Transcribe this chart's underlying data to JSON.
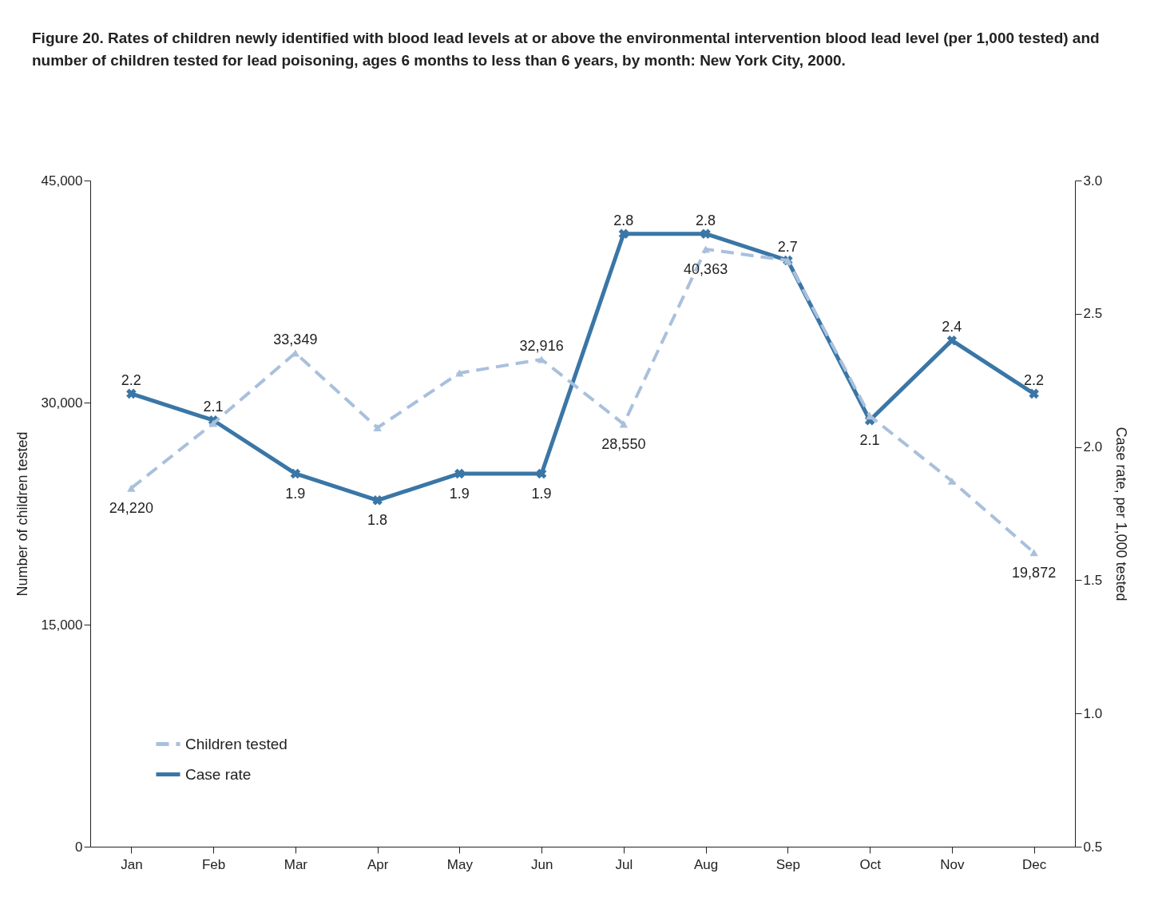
{
  "chart_data": {
    "type": "line",
    "title": "Figure 20. Rates of children newly identified with blood lead levels at or above the environmental intervention blood lead level (per 1,000 tested) and number of children tested for lead poisoning, ages 6 months to less than 6 years, by month: New York City, 2000.",
    "categories": [
      "Jan",
      "Feb",
      "Mar",
      "Apr",
      "May",
      "Jun",
      "Jul",
      "Aug",
      "Sep",
      "Oct",
      "Nov",
      "Dec"
    ],
    "ylabel": "Number of children tested",
    "y2label": "Case rate, per 1,000 tested",
    "ylim": [
      0,
      45000
    ],
    "yticks": [
      0,
      {
        "value": 15000,
        "label": "15,000"
      },
      {
        "value": 30000,
        "label": "30,000"
      },
      {
        "value": 45000,
        "label": "45,000"
      }
    ],
    "y2lim": [
      0.5,
      3
    ],
    "y2ticks": [
      0.5,
      {
        "value": 1,
        "label": "1.0"
      },
      1.5,
      {
        "value": 2,
        "label": "2.0"
      },
      2.5,
      {
        "value": 3,
        "label": "3.0"
      }
    ],
    "legend": "bottom left",
    "grid": false,
    "series": [
      {
        "name": "Children tested",
        "color": "#a9c0dc",
        "line_style": "dashed",
        "marker": "triangle",
        "values": [
          24220,
          28600,
          33349,
          28300,
          32000,
          32916,
          28550,
          40363,
          39600,
          29100,
          24700,
          19872
        ],
        "value_labels": [
          "24,220",
          null,
          "33,349",
          null,
          null,
          "32,916",
          "28,550",
          "40,363",
          null,
          null,
          null,
          "19,872"
        ]
      },
      {
        "name": "Case rate",
        "color": "#3a76a6",
        "line_style": "solid",
        "marker": "cross",
        "axis": "y2",
        "data_labels": true,
        "values": [
          2.2,
          2.1,
          1.9,
          1.8,
          1.9,
          1.9,
          2.8,
          2.8,
          2.7,
          2.1,
          2.4,
          2.2
        ]
      }
    ]
  }
}
